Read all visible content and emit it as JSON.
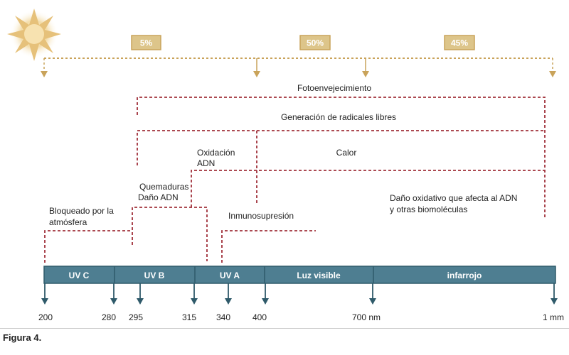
{
  "figure": {
    "caption": "Figura 4."
  },
  "energy_split": {
    "labels": [
      "5%",
      "50%",
      "45%"
    ],
    "box_color": "#ddc58a",
    "border_color": "#c9a35a"
  },
  "effects": {
    "photoaging": "Fotoenvejecimiento",
    "free_radicals": "Generación de radicales libres",
    "dna_oxidation_1": "Oxidación",
    "dna_oxidation_2": "ADN",
    "heat": "Calor",
    "burns_1": "Quemaduras",
    "burns_2": "Daño ADN",
    "blocked_1": "Bloqueado por la",
    "blocked_2": "atmósfera",
    "immunosuppression": "Inmunosupresión",
    "oxidative_1": "Daño oxidativo que afecta al ADN",
    "oxidative_2": "y otras biomoléculas",
    "dashed_color": "#a0303a"
  },
  "spectrum": {
    "bands": [
      "UV C",
      "UV B",
      "UV A",
      "Luz visible",
      "infarrojo"
    ],
    "bar_color": "#4e7e91",
    "bar_border": "#2f5a6a",
    "tick_labels": [
      "200",
      "280",
      "295",
      "315",
      "340",
      "400",
      "700 nm",
      "1 mm"
    ]
  },
  "icons": {
    "sun": "sun-icon"
  }
}
